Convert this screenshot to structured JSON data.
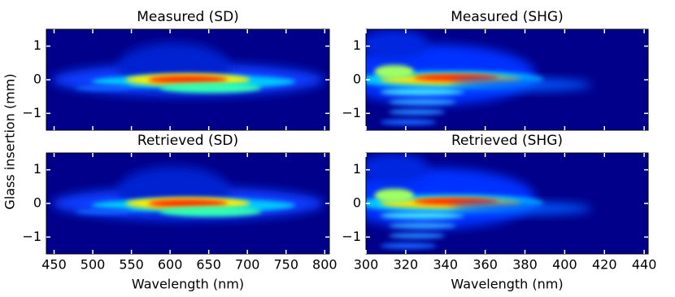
{
  "chart_data": [
    {
      "type": "heatmap",
      "title": "Measured (SD)",
      "ylabel": "Glass insertion (mm)",
      "xlim": [
        440,
        806
      ],
      "ylim": [
        -1.5,
        1.5
      ],
      "xticks": [
        450,
        500,
        550,
        600,
        650,
        700,
        750,
        800
      ],
      "xtick_labels": false,
      "yticks": [
        {
          "value": -1,
          "label": "−1"
        },
        0,
        1
      ]
    },
    {
      "type": "heatmap",
      "title": "Measured (SHG)",
      "xlim": [
        300,
        442
      ],
      "ylim": [
        -1.5,
        1.5
      ],
      "xticks": [
        300,
        320,
        340,
        360,
        380,
        400,
        420,
        440
      ],
      "xtick_labels": false,
      "yticks": [
        {
          "value": -1,
          "label": "−1"
        },
        0,
        1
      ]
    },
    {
      "type": "heatmap",
      "title": "Retrieved (SD)",
      "xlabel": "Wavelength (nm)",
      "xlim": [
        440,
        806
      ],
      "ylim": [
        -1.5,
        1.5
      ],
      "xticks": [
        450,
        500,
        550,
        600,
        650,
        700,
        750,
        800
      ],
      "xtick_labels": true,
      "yticks": [
        {
          "value": -1,
          "label": "−1"
        },
        0,
        1
      ]
    },
    {
      "type": "heatmap",
      "title": "Retrieved (SHG)",
      "xlabel": "Wavelength (nm)",
      "xlim": [
        300,
        442
      ],
      "ylim": [
        -1.5,
        1.5
      ],
      "xticks": [
        300,
        320,
        340,
        360,
        380,
        400,
        420,
        440
      ],
      "xtick_labels": true,
      "yticks": [
        {
          "value": -1,
          "label": "−1"
        },
        0,
        1
      ]
    }
  ]
}
